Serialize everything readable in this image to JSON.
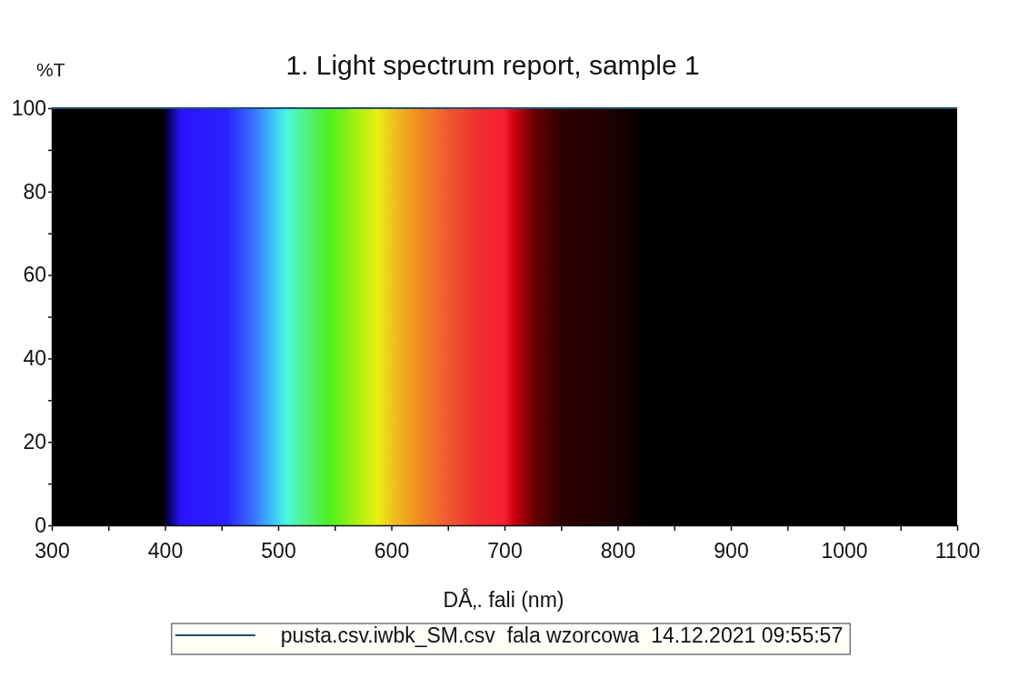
{
  "chart_data": {
    "type": "line",
    "title": "1. Light spectrum report, sample 1",
    "xlabel": "DÅ‚. fali (nm)",
    "ylabel": "%T",
    "x": [
      300,
      1100
    ],
    "series": [
      {
        "name": "pusta.csv.iwbk_SM.csv  fala wzorcowa  14.12.2021 09:55:57",
        "color": "#1f4f6f",
        "values": [
          100,
          100
        ]
      }
    ],
    "xlim": [
      300,
      1100
    ],
    "ylim": [
      0,
      100
    ],
    "xticks": [
      300,
      {
        "value": 350,
        "label": null
      },
      400,
      {
        "value": 450,
        "label": null
      },
      500,
      {
        "value": 550,
        "label": null
      },
      600,
      {
        "value": 650,
        "label": null
      },
      700,
      {
        "value": 750,
        "label": null
      },
      800,
      {
        "value": 850,
        "label": null
      },
      900,
      {
        "value": 950,
        "label": null
      },
      1000,
      {
        "value": 1050,
        "label": null
      },
      1100
    ],
    "yticks": [
      0,
      {
        "value": 10,
        "label": null
      },
      20,
      {
        "value": 30,
        "label": null
      },
      40,
      {
        "value": 50,
        "label": null
      },
      60,
      {
        "value": 70,
        "label": null
      },
      80,
      {
        "value": 90,
        "label": null
      },
      100
    ],
    "legend": "bottom"
  }
}
